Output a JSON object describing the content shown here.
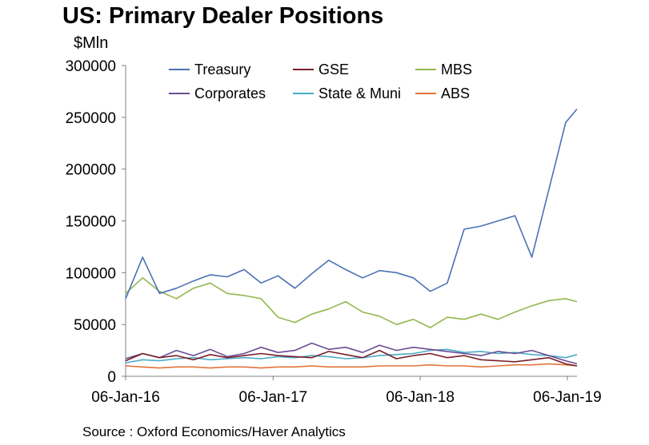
{
  "title": "US: Primary Dealer Positions",
  "unit_label": "$Mln",
  "source": "Source : Oxford Economics/Haver Analytics",
  "chart_data": {
    "type": "line",
    "ylim": [
      0,
      300000
    ],
    "yticks": [
      "0",
      "50000",
      "100000",
      "150000",
      "200000",
      "250000",
      "300000"
    ],
    "yticks_values": [
      0,
      50000,
      100000,
      150000,
      200000,
      250000,
      300000
    ],
    "xlim": [
      "2016-01-06",
      "2019-01-30"
    ],
    "xticks": [
      "06-Jan-16",
      "06-Jan-17",
      "06-Jan-18",
      "06-Jan-19"
    ],
    "xticks_values": [
      "2016-01-06",
      "2017-01-06",
      "2018-01-06",
      "2019-01-06"
    ],
    "grid": false,
    "legend_position": "top, inside plot, 3 columns",
    "x": [
      "2016-01-06",
      "2016-02-17",
      "2016-03-30",
      "2016-05-11",
      "2016-06-22",
      "2016-08-03",
      "2016-09-14",
      "2016-10-26",
      "2016-12-07",
      "2017-01-18",
      "2017-03-01",
      "2017-04-12",
      "2017-05-24",
      "2017-07-05",
      "2017-08-16",
      "2017-09-27",
      "2017-11-08",
      "2017-12-20",
      "2018-01-31",
      "2018-03-14",
      "2018-04-25",
      "2018-06-06",
      "2018-07-18",
      "2018-08-29",
      "2018-10-10",
      "2018-11-21",
      "2019-01-02",
      "2019-01-30"
    ],
    "series": [
      {
        "name": "Treasury",
        "color": "#4a72b5",
        "values": [
          75000,
          115000,
          80000,
          85000,
          92000,
          98000,
          96000,
          103000,
          90000,
          97000,
          85000,
          99000,
          112000,
          103000,
          95000,
          102000,
          100000,
          95000,
          82000,
          90000,
          142000,
          145000,
          150000,
          155000,
          115000,
          180000,
          245000,
          258000
        ]
      },
      {
        "name": "GSE",
        "color": "#7a1f2b",
        "values": [
          15000,
          22000,
          18000,
          20000,
          16000,
          21000,
          18000,
          20000,
          22000,
          20000,
          19000,
          18000,
          24000,
          21000,
          18000,
          25000,
          17000,
          20000,
          22000,
          18000,
          20000,
          16000,
          15000,
          14000,
          16000,
          18000,
          12000,
          10000
        ]
      },
      {
        "name": "MBS",
        "color": "#93b752",
        "values": [
          80000,
          95000,
          82000,
          75000,
          85000,
          90000,
          80000,
          78000,
          75000,
          57000,
          52000,
          60000,
          65000,
          72000,
          62000,
          58000,
          50000,
          55000,
          47000,
          57000,
          55000,
          60000,
          55000,
          62000,
          68000,
          73000,
          75000,
          72000
        ]
      },
      {
        "name": "Corporates",
        "color": "#6a4c93",
        "values": [
          17000,
          22000,
          18000,
          25000,
          20000,
          26000,
          19000,
          22000,
          28000,
          23000,
          25000,
          32000,
          26000,
          28000,
          23000,
          30000,
          25000,
          28000,
          26000,
          24000,
          22000,
          20000,
          24000,
          22000,
          25000,
          20000,
          15000,
          12000
        ]
      },
      {
        "name": "State & Muni",
        "color": "#4bacc6",
        "values": [
          13000,
          16000,
          15000,
          17000,
          18000,
          16000,
          17000,
          18000,
          17000,
          19000,
          18000,
          20000,
          19000,
          17000,
          18000,
          20000,
          21000,
          22000,
          25000,
          26000,
          23000,
          24000,
          22000,
          23000,
          21000,
          20000,
          18000,
          21000
        ]
      },
      {
        "name": "ABS",
        "color": "#e0743a",
        "values": [
          10000,
          9000,
          8000,
          9000,
          9000,
          8000,
          9000,
          9000,
          8000,
          9000,
          9000,
          10000,
          9000,
          9000,
          9000,
          10000,
          10000,
          10000,
          11000,
          10000,
          10000,
          9000,
          10000,
          11000,
          11000,
          12000,
          11000,
          10000
        ]
      }
    ]
  }
}
